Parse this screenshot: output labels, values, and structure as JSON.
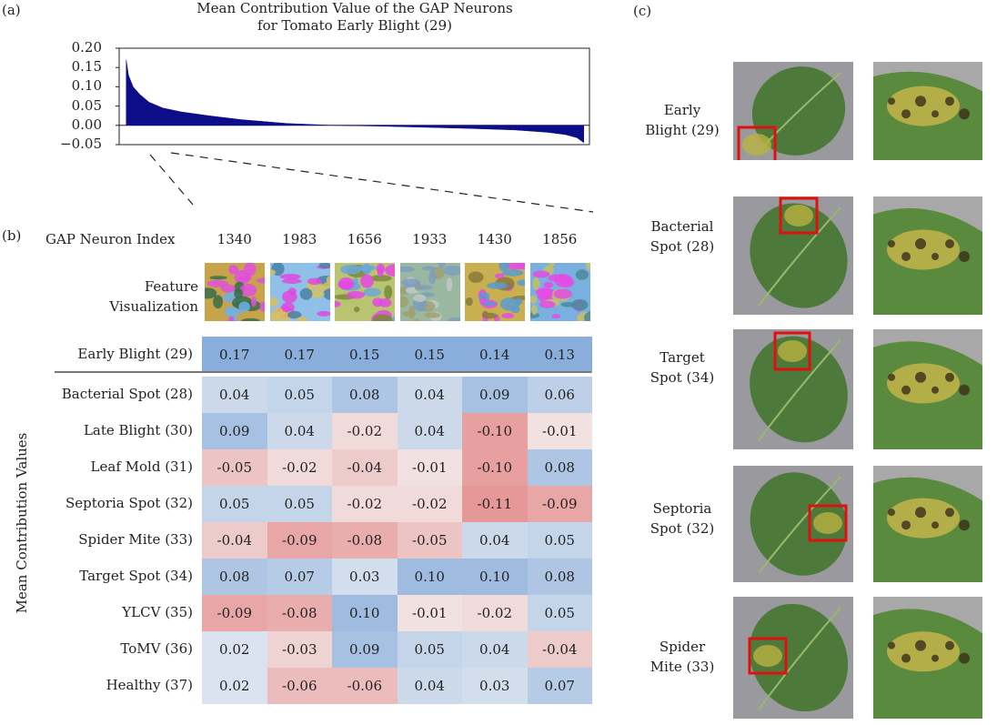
{
  "panel_labels": {
    "a": "(a)",
    "b": "(b)",
    "c": "(c)"
  },
  "chart_data": [
    {
      "type": "area",
      "title": "Mean Contribution Value of the GAP Neurons",
      "subtitle": "for Tomato Early Blight (29)",
      "ylim": [
        -0.05,
        0.2
      ],
      "yticks": [
        "0.20",
        "0.15",
        "0.10",
        "0.05",
        "0.00",
        "−0.05"
      ],
      "ytick_values": [
        0.2,
        0.15,
        0.1,
        0.05,
        0.0,
        -0.05
      ],
      "x_sorted_profile": {
        "fraction": [
          0.0,
          0.005,
          0.015,
          0.03,
          0.05,
          0.08,
          0.12,
          0.18,
          0.25,
          0.35,
          0.45,
          0.55,
          0.65,
          0.75,
          0.85,
          0.92,
          0.96,
          0.985,
          1.0
        ],
        "values": [
          0.17,
          0.13,
          0.1,
          0.08,
          0.06,
          0.045,
          0.035,
          0.025,
          0.015,
          0.005,
          0.0,
          -0.002,
          -0.005,
          -0.008,
          -0.012,
          -0.018,
          -0.024,
          -0.032,
          -0.045
        ]
      },
      "series_color": "#0d0d8a",
      "grid": false
    },
    {
      "type": "heatmap",
      "xlabel": "GAP Neuron Index",
      "ylabel": "Mean Contribution Values",
      "columns": [
        "1340",
        "1983",
        "1656",
        "1933",
        "1430",
        "1856"
      ],
      "feature_row_label": [
        "Feature",
        "Visualization"
      ],
      "rows": [
        {
          "label": "Early Blight (29)",
          "values": [
            0.17,
            0.17,
            0.15,
            0.15,
            0.14,
            0.13
          ]
        },
        {
          "label": "Bacterial Spot (28)",
          "values": [
            0.04,
            0.05,
            0.08,
            0.04,
            0.09,
            0.06
          ]
        },
        {
          "label": "Late Blight (30)",
          "values": [
            0.09,
            0.04,
            -0.02,
            0.04,
            -0.1,
            -0.01
          ]
        },
        {
          "label": "Leaf Mold (31)",
          "values": [
            -0.05,
            -0.02,
            -0.04,
            -0.01,
            -0.1,
            0.08
          ]
        },
        {
          "label": "Septoria Spot (32)",
          "values": [
            0.05,
            0.05,
            -0.02,
            -0.02,
            -0.11,
            -0.09
          ]
        },
        {
          "label": "Spider Mite (33)",
          "values": [
            -0.04,
            -0.09,
            -0.08,
            -0.05,
            0.04,
            0.05
          ]
        },
        {
          "label": "Target Spot (34)",
          "values": [
            0.08,
            0.07,
            0.03,
            0.1,
            0.1,
            0.08
          ]
        },
        {
          "label": "YLCV (35)",
          "values": [
            -0.09,
            -0.08,
            0.1,
            -0.01,
            -0.02,
            0.05
          ]
        },
        {
          "label": "ToMV (36)",
          "values": [
            0.02,
            -0.03,
            0.09,
            0.05,
            0.04,
            -0.04
          ]
        },
        {
          "label": "Healthy (37)",
          "values": [
            0.02,
            -0.06,
            -0.06,
            0.04,
            0.03,
            0.07
          ]
        }
      ],
      "color_positive": "#5b8fd0",
      "color_negative": "#dc5a5a"
    }
  ],
  "disease_examples": [
    {
      "line1": "Early",
      "line2": "Blight (29)"
    },
    {
      "line1": "Bacterial",
      "line2": "Spot (28)"
    },
    {
      "line1": "Target",
      "line2": "Spot (34)"
    },
    {
      "line1": "Septoria",
      "line2": "Spot (32)"
    },
    {
      "line1": "Spider",
      "line2": "Mite (33)"
    }
  ]
}
